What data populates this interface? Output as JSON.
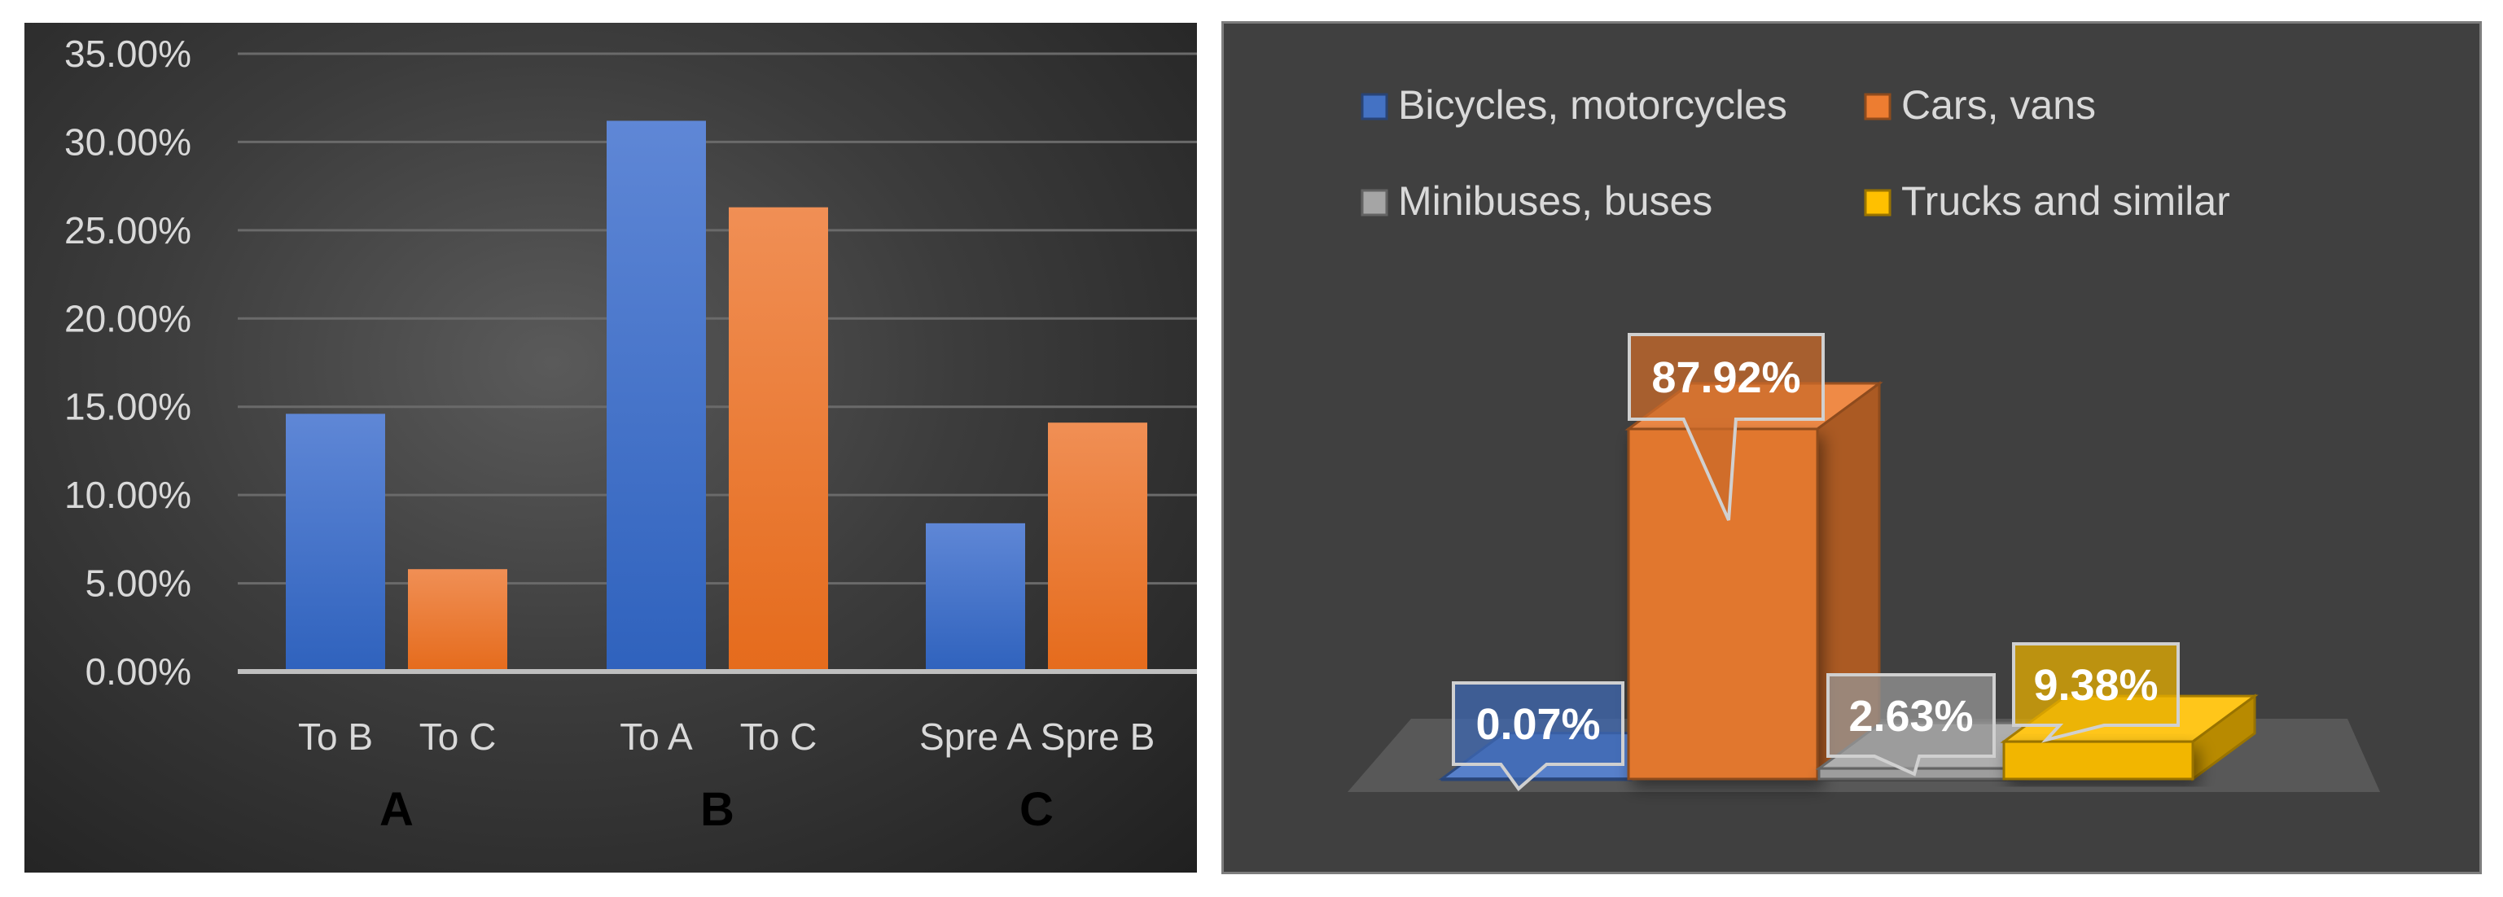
{
  "chart_data": [
    {
      "type": "bar",
      "groups": [
        {
          "label": "A",
          "categories": [
            "To B",
            "To C"
          ]
        },
        {
          "label": "B",
          "categories": [
            "To A",
            "To C"
          ]
        },
        {
          "label": "C",
          "categories": [
            "Spre A",
            "Spre B"
          ]
        }
      ],
      "values": [
        14.6,
        5.8,
        31.2,
        26.3,
        8.4,
        14.1
      ],
      "bar_colors": [
        "#4472c4",
        "#ed7d31",
        "#4472c4",
        "#ed7d31",
        "#4472c4",
        "#ed7d31"
      ],
      "yticks": [
        "0.00%",
        "5.00%",
        "10.00%",
        "15.00%",
        "20.00%",
        "25.00%",
        "30.00%",
        "35.00%"
      ],
      "ylim": [
        0,
        35
      ],
      "grid": true
    },
    {
      "type": "bar",
      "style": "3d",
      "legend": {
        "position": "top",
        "entries": [
          "Bicycles, motorcycles",
          "Cars, vans",
          "Minibuses, buses",
          "Trucks and similar"
        ]
      },
      "series": [
        {
          "name": "Bicycles, motorcycles",
          "value": 0.07,
          "label": "0.07%",
          "color": "#4472c4"
        },
        {
          "name": "Cars, vans",
          "value": 87.92,
          "label": "87.92%",
          "color": "#ed7d31"
        },
        {
          "name": "Minibuses, buses",
          "value": 2.63,
          "label": "2.63%",
          "color": "#a5a5a5"
        },
        {
          "name": "Trucks and similar",
          "value": 9.38,
          "label": "9.38%",
          "color": "#ffc000"
        }
      ]
    }
  ]
}
